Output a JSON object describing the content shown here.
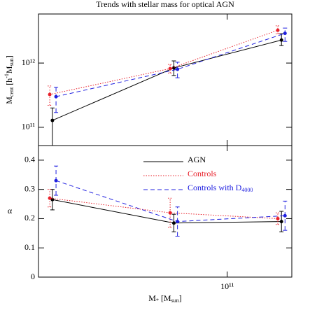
{
  "chart_data": [
    {
      "type": "line",
      "title": "Trends with stellar mass for optical AGN",
      "ylabel": [
        "M",
        "cent",
        " [h",
        "-1",
        "M",
        "sun",
        "]"
      ],
      "xlim": [
        19500000000.0,
        175000000000.0
      ],
      "xlog": true,
      "ylim": [
        52000000000.0,
        5800000000000.0
      ],
      "ylog": true,
      "yticks": [
        {
          "value": 100000000000.0,
          "label": "10¹¹"
        },
        {
          "value": 1000000000000.0,
          "label": "10¹²"
        }
      ],
      "series": [
        {
          "color": "#000000",
          "linestyle": "solid",
          "x": [
            22000000000.0,
            63000000000.0,
            160000000000.0
          ],
          "values": [
            128000000000.0,
            840000000000.0,
            2280000000000.0
          ],
          "err_low": [
            50000000000.0,
            640000000000.0,
            1870000000000.0
          ],
          "err_high": [
            200000000000.0,
            1080000000000.0,
            2860000000000.0
          ]
        },
        {
          "color": "#e8202a",
          "linestyle": "dotted",
          "x": [
            21500000000.0,
            61000000000.0,
            155000000000.0
          ],
          "values": [
            324000000000.0,
            820000000000.0,
            3240000000000.0
          ],
          "err_low": [
            220000000000.0,
            700000000000.0,
            2860000000000.0
          ],
          "err_high": [
            440000000000.0,
            950000000000.0,
            3800000000000.0
          ]
        },
        {
          "color": "#2020e0",
          "linestyle": "dashed",
          "x": [
            22700000000.0,
            65000000000.0,
            165000000000.0
          ],
          "values": [
            300000000000.0,
            800000000000.0,
            2900000000000.0
          ],
          "err_low": [
            170000000000.0,
            590000000000.0,
            2170000000000.0
          ],
          "err_high": [
            420000000000.0,
            1030000000000.0,
            3500000000000.0
          ]
        }
      ]
    },
    {
      "type": "line",
      "ylabel": "α",
      "xlabel": [
        "M",
        "*",
        " [M",
        "sun",
        "]"
      ],
      "xlim": [
        19500000000.0,
        175000000000.0
      ],
      "xlog": true,
      "xticks": [
        {
          "value": 100000000000.0,
          "label": "10¹¹"
        }
      ],
      "ylim": [
        0,
        0.45
      ],
      "yticks": [
        0,
        0.1,
        0.2,
        0.3,
        0.4
      ],
      "series": [
        {
          "name": "AGN",
          "color": "#000000",
          "linestyle": "solid",
          "x": [
            22000000000.0,
            63000000000.0,
            160000000000.0
          ],
          "values": [
            0.265,
            0.185,
            0.19
          ],
          "yerr": [
            0.035,
            0.03,
            0.035
          ]
        },
        {
          "name": "Controls",
          "color": "#e8202a",
          "linestyle": "dotted",
          "x": [
            21500000000.0,
            61000000000.0,
            155000000000.0
          ],
          "values": [
            0.27,
            0.22,
            0.2
          ],
          "yerr": [
            0.03,
            0.05,
            0.02
          ]
        },
        {
          "name": "Controls with D",
          "name_sub": "4000",
          "color": "#2020e0",
          "linestyle": "dashed",
          "x": [
            22700000000.0,
            65000000000.0,
            165000000000.0
          ],
          "values": [
            0.33,
            0.19,
            0.21
          ],
          "yerr": [
            0.05,
            0.05,
            0.05
          ]
        }
      ]
    }
  ]
}
